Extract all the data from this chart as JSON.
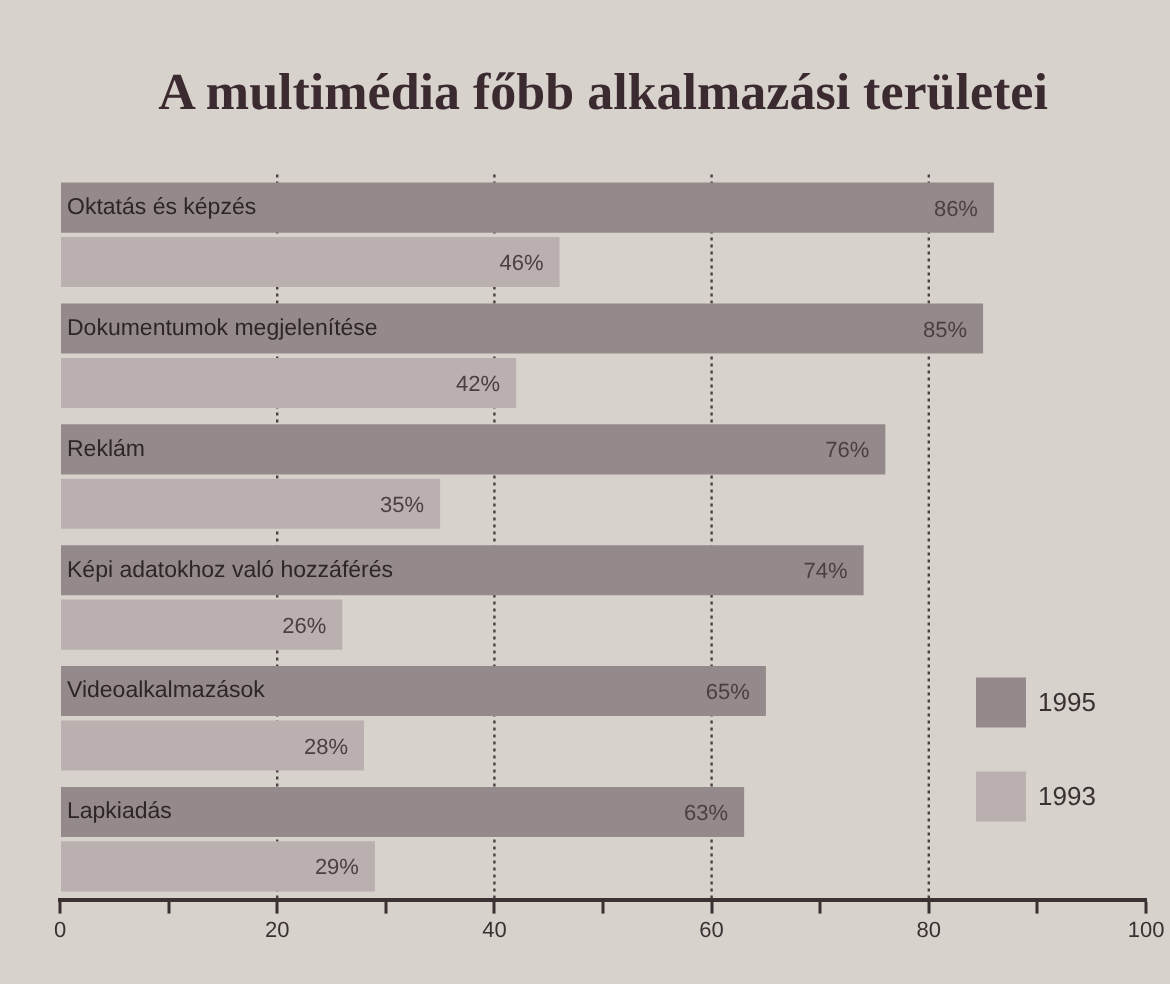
{
  "chart_data": {
    "type": "bar",
    "orientation": "horizontal",
    "title": "A multimédia főbb alkalmazási területei",
    "categories": [
      "Oktatás és képzés",
      "Dokumentumok megjelenítése",
      "Reklám",
      "Képi adatokhoz való hozzáférés",
      "Videoalkalmazások",
      "Lapkiadás"
    ],
    "series": [
      {
        "name": "1995",
        "color": "#958a8b",
        "values": [
          86,
          85,
          76,
          74,
          65,
          63
        ],
        "value_labels": [
          "86%",
          "85%",
          "76%",
          "74%",
          "65%",
          "63%"
        ]
      },
      {
        "name": "1993",
        "color": "#bab0b0",
        "values": [
          46,
          42,
          35,
          26,
          28,
          29
        ],
        "value_labels": [
          "46%",
          "42%",
          "35%",
          "26%",
          "28%",
          "29%"
        ]
      }
    ],
    "xlim": [
      0,
      100
    ],
    "xticks": [
      0,
      {
        "value": 10,
        "label": null
      },
      20,
      {
        "value": 30,
        "label": null
      },
      40,
      {
        "value": 50,
        "label": null
      },
      60,
      {
        "value": 70,
        "label": null
      },
      80,
      {
        "value": 90,
        "label": null
      },
      100
    ],
    "grid": "x",
    "legend": "bottom right",
    "tick_labels": "x"
  }
}
